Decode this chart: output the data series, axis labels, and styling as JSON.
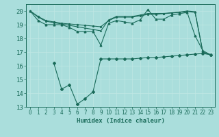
{
  "xlabel": "Humidex (Indice chaleur)",
  "xlim": [
    -0.5,
    23.5
  ],
  "ylim": [
    13,
    20.5
  ],
  "yticks": [
    13,
    14,
    15,
    16,
    17,
    18,
    19,
    20
  ],
  "xticks": [
    0,
    1,
    2,
    3,
    4,
    5,
    6,
    7,
    8,
    9,
    10,
    11,
    12,
    13,
    14,
    15,
    16,
    17,
    18,
    19,
    20,
    21,
    22,
    23
  ],
  "bg_color": "#aadedc",
  "line_color": "#1a6b5a",
  "line1": [
    20.0,
    19.3,
    19.0,
    19.0,
    19.0,
    18.8,
    18.5,
    18.5,
    18.5,
    17.5,
    19.1,
    19.3,
    19.2,
    19.1,
    19.35,
    20.1,
    19.4,
    19.4,
    19.7,
    19.8,
    19.9,
    18.2,
    17.1,
    16.8
  ],
  "line2": [
    20.0,
    19.6,
    19.3,
    19.2,
    19.1,
    19.05,
    19.0,
    18.95,
    18.9,
    18.85,
    19.3,
    19.55,
    19.55,
    19.55,
    19.65,
    19.75,
    19.75,
    19.8,
    19.85,
    19.9,
    19.95,
    19.9,
    17.0,
    16.8
  ],
  "line3": [
    20.0,
    19.55,
    19.25,
    19.15,
    19.05,
    18.95,
    18.85,
    18.75,
    18.65,
    18.55,
    19.35,
    19.6,
    19.6,
    19.6,
    19.7,
    19.82,
    19.82,
    19.82,
    19.87,
    19.92,
    20.0,
    19.95,
    17.0,
    16.8
  ],
  "line4": [
    null,
    null,
    null,
    16.2,
    14.3,
    14.6,
    13.2,
    13.6,
    14.1,
    16.5,
    16.5,
    16.5,
    16.5,
    16.5,
    16.55,
    16.6,
    16.6,
    16.65,
    16.7,
    16.75,
    16.8,
    16.85,
    16.9,
    16.8
  ]
}
